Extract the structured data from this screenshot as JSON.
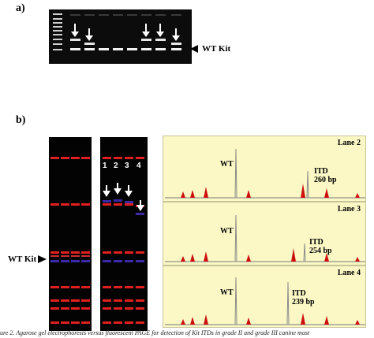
{
  "panel_a": {
    "label": "a)",
    "wt_kit_label": "WT Kit",
    "colors": {
      "gel_bg": "#0c0c0c",
      "band": "#e8e8e8",
      "arrow": "#ffffff"
    }
  },
  "panel_b": {
    "label": "b)",
    "wt_kit_label": "WT Kit",
    "lane_numbers": [
      "1",
      "2",
      "3",
      "4"
    ],
    "colors": {
      "gel_bg": "#030303",
      "size_band": "#e02020",
      "wt_band": "#3a2aa8",
      "itd_band": "#3a2aa8"
    },
    "traces": [
      {
        "lane_label": "Lane 2",
        "wt_label": "WT",
        "itd_label": "ITD",
        "itd_size": "260 bp"
      },
      {
        "lane_label": "Lane 3",
        "wt_label": "WT",
        "itd_label": "ITD",
        "itd_size": "254 bp"
      },
      {
        "lane_label": "Lane 4",
        "wt_label": "WT",
        "itd_label": "ITD",
        "itd_size": "239 bp"
      }
    ],
    "trace_colors": {
      "panel_bg": "#fbf8c6",
      "size_peak": "#cc1010",
      "signal_peak": "#8a8a8a"
    }
  },
  "caption": "ure 2. Agarose gel electrophoresis versus fluorescent PAGE for detection of Kit ITDs in grade II and grade III canine mast"
}
